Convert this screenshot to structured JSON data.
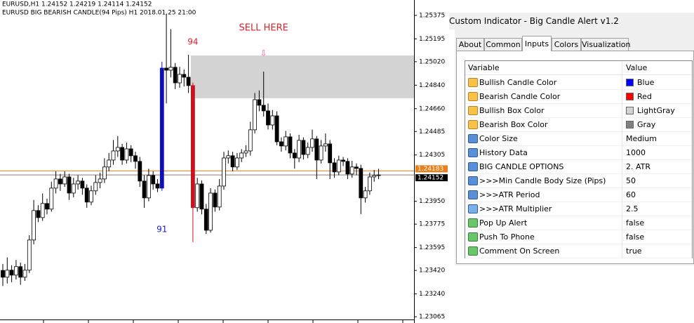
{
  "chart_data": {
    "type": "candlestick",
    "header_lines": [
      "EURUSD,H1  1.24152 1.24219 1.24114 1.24152",
      "EURUSD BIG BEARISH CANDLE(94 Pips) H1 2018.01.25 21:00"
    ],
    "open": [
      1.2342,
      1.23368,
      1.23422,
      1.23384,
      1.23449,
      1.23368,
      1.23422,
      1.23653,
      1.23879,
      1.23825,
      1.23933,
      1.2389,
      1.24051,
      1.24121,
      1.24083,
      1.24137,
      1.24013,
      1.24083,
      1.24105,
      1.24051,
      1.23944,
      1.2403,
      1.24094,
      1.24121,
      1.24213,
      1.24266,
      1.24336,
      1.24363,
      1.24266,
      1.24352,
      1.24299,
      1.24256,
      1.24105,
      1.23976,
      1.24148,
      1.24083,
      1.24051,
      1.24971,
      1.24955,
      1.24977,
      1.24858,
      1.24923,
      1.24901,
      1.24837,
      1.23901,
      1.24083,
      1.2389,
      1.23728,
      1.24013,
      1.23906,
      1.24067,
      1.24282,
      1.24299,
      1.24213,
      1.24282,
      1.2432,
      1.24336,
      1.24498,
      1.24729,
      1.24686,
      1.24643,
      1.24535,
      1.24605,
      1.24406,
      1.24374,
      1.24444,
      1.2432,
      1.24282,
      1.24417,
      1.24309,
      1.24363,
      1.24428,
      1.24266,
      1.24374,
      1.2439,
      1.24245,
      1.24175,
      1.24266,
      1.24256,
      1.24159,
      1.24213,
      1.24202,
      1.23976,
      1.2403,
      1.24137,
      1.24148
    ],
    "high": [
      1.2347,
      1.2352,
      1.2346,
      1.235,
      1.2348,
      1.2347,
      1.2369,
      1.2396,
      1.2392,
      1.2401,
      1.2397,
      1.241,
      1.2418,
      1.2416,
      1.2418,
      1.2416,
      1.2413,
      1.2415,
      1.2413,
      1.2408,
      1.2407,
      1.2415,
      1.2417,
      1.2428,
      1.2432,
      1.2442,
      1.2445,
      1.2439,
      1.244,
      1.2438,
      1.2433,
      1.2429,
      1.2415,
      1.242,
      1.2418,
      1.2412,
      1.2502,
      1.25385,
      1.2527,
      1.2501,
      1.2498,
      1.2496,
      1.25073,
      1.2486,
      1.2413,
      1.2411,
      1.2393,
      1.2405,
      1.2404,
      1.2412,
      1.2433,
      1.2434,
      1.2433,
      1.2432,
      1.2435,
      1.2438,
      1.2456,
      1.2478,
      1.248,
      1.24944,
      1.247,
      1.2465,
      1.2464,
      1.2444,
      1.2449,
      1.2447,
      1.2435,
      1.2446,
      1.2444,
      1.244,
      1.245,
      1.2445,
      1.2442,
      1.2447,
      1.2442,
      1.2428,
      1.243,
      1.2429,
      1.2428,
      1.2426,
      1.2424,
      1.2423,
      1.2406,
      1.2417,
      1.2419,
      1.242
    ],
    "low": [
      1.233,
      1.2332,
      1.2333,
      1.2335,
      1.2331,
      1.2334,
      1.234,
      1.2362,
      1.2379,
      1.238,
      1.2385,
      1.2387,
      1.2401,
      1.2403,
      1.2406,
      1.2396,
      1.2398,
      1.2404,
      1.24,
      1.239,
      1.2392,
      1.24,
      1.2405,
      1.2409,
      1.2418,
      1.2423,
      1.2429,
      1.2423,
      1.2424,
      1.2425,
      1.242,
      1.2406,
      1.239,
      1.2395,
      1.2404,
      1.2402,
      1.2403,
      1.247,
      1.249,
      1.2481,
      1.2482,
      1.2483,
      1.2478,
      1.23637,
      1.2387,
      1.2385,
      1.237,
      1.2371,
      1.2387,
      1.2388,
      1.2404,
      1.2424,
      1.2418,
      1.2419,
      1.2425,
      1.2429,
      1.243,
      1.2447,
      1.2464,
      1.246,
      1.245,
      1.245,
      1.2438,
      1.2433,
      1.2434,
      1.2428,
      1.242,
      1.2425,
      1.2427,
      1.2428,
      1.2433,
      1.2412,
      1.2424,
      1.2433,
      1.2412,
      1.2413,
      1.2415,
      1.2422,
      1.2412,
      1.2413,
      1.2415,
      1.23852,
      1.2394,
      1.24,
      1.241,
      1.2412
    ],
    "close": [
      1.23368,
      1.23422,
      1.23384,
      1.23449,
      1.23368,
      1.23422,
      1.23653,
      1.23879,
      1.23825,
      1.23933,
      1.2389,
      1.24051,
      1.24121,
      1.24083,
      1.24137,
      1.24013,
      1.24083,
      1.24105,
      1.24051,
      1.23944,
      1.2403,
      1.24094,
      1.24121,
      1.24213,
      1.24266,
      1.24336,
      1.24363,
      1.24266,
      1.24352,
      1.24299,
      1.24256,
      1.24105,
      1.23976,
      1.24148,
      1.24083,
      1.24051,
      1.24971,
      1.24955,
      1.24977,
      1.24858,
      1.24923,
      1.24901,
      1.24837,
      1.23901,
      1.24083,
      1.2389,
      1.23728,
      1.24013,
      1.23906,
      1.24067,
      1.24282,
      1.24299,
      1.24213,
      1.24282,
      1.2432,
      1.24336,
      1.24498,
      1.24729,
      1.24686,
      1.24643,
      1.24535,
      1.24605,
      1.24406,
      1.24374,
      1.24444,
      1.2432,
      1.24282,
      1.24417,
      1.24309,
      1.24363,
      1.24428,
      1.24266,
      1.24374,
      1.2439,
      1.24245,
      1.24175,
      1.24266,
      1.24256,
      1.24159,
      1.24213,
      1.24202,
      1.23976,
      1.2403,
      1.24137,
      1.24148,
      1.24152
    ],
    "highlights": [
      {
        "index": 36,
        "color": "#1010b0"
      },
      {
        "index": 43,
        "color": "#c8141e"
      }
    ],
    "zone": {
      "start": 43,
      "top": 1.25068,
      "bottom": 1.2474,
      "color": "#d3d3d3"
    },
    "annotations": [
      {
        "text": "94",
        "color": "#e0202a",
        "index": 43,
        "price": 1.2517
      },
      {
        "text": "91",
        "color": "#2020c0",
        "index": 36,
        "price": 1.23734
      },
      {
        "text": "SELL HERE",
        "color": "#e0202a",
        "index": 59,
        "price": 1.25278
      },
      {
        "text": "⇩",
        "color": "#e060a0",
        "index": 59,
        "price": 1.25084
      }
    ],
    "price_lines": [
      {
        "value": 1.24183,
        "color": "#e8801c"
      },
      {
        "value": 1.24152,
        "color": "#000000"
      }
    ],
    "ylim": [
      1.23017,
      1.25493
    ],
    "yticks": [
      1.25375,
      1.25195,
      {
        "value": 1.2502,
        "label": "1.25020"
      },
      {
        "value": 1.2484,
        "label": "1.24840"
      },
      {
        "value": 1.2466,
        "label": "1.24660"
      },
      1.24485,
      1.24305,
      {
        "value": 1.2395,
        "label": "1.23950"
      },
      1.23775,
      1.23595,
      {
        "value": 1.2342,
        "label": "1.23420"
      },
      {
        "value": 1.2324,
        "label": "1.23240"
      },
      1.23065
    ]
  },
  "dialog": {
    "title": "Custom Indicator - Big Candle Alert v1.2",
    "tabs": [
      "About",
      "Common",
      "Inputs",
      "Colors",
      "Visualization"
    ],
    "columns": [
      "Variable",
      "Value"
    ],
    "rows": [
      {
        "variable": "Bullish Candle Color",
        "value": "Blue",
        "swatch": "#0000ff"
      },
      {
        "variable": "Bearish Candle Color",
        "value": "Red",
        "swatch": "#ff0000"
      },
      {
        "variable": "Bullish Box Color",
        "value": "LightGray",
        "swatch": "#d3d3d3"
      },
      {
        "variable": "Bearish Box Color",
        "value": "Gray",
        "swatch": "#808080"
      },
      {
        "variable": "Color Size",
        "value": "Medium"
      },
      {
        "variable": "History Data",
        "value": "1000"
      },
      {
        "variable": "BIG CANDLE OPTIONS",
        "value": "2. ATR"
      },
      {
        "variable": ">>>Min Candle Body Size (Pips)",
        "value": "50"
      },
      {
        "variable": ">>>ATR Period",
        "value": "60"
      },
      {
        "variable": ">>>ATR Multiplier",
        "value": "2.5"
      },
      {
        "variable": "Pop Up Alert",
        "value": "false"
      },
      {
        "variable": "Push To Phone",
        "value": "false"
      },
      {
        "variable": "Comment On Screen",
        "value": "true"
      }
    ]
  }
}
